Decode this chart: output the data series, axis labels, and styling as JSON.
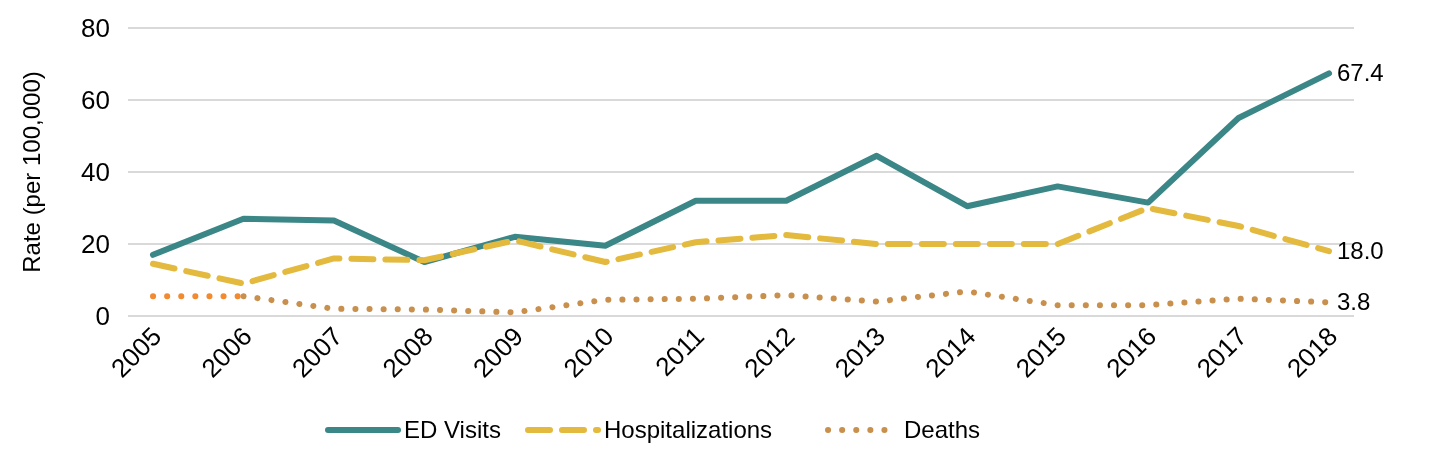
{
  "chart_data": {
    "type": "line",
    "ylabel": "Rate (per 100,000)",
    "categories": [
      "2005",
      "2006",
      "2007",
      "2008",
      "2009",
      "2010",
      "2011",
      "2012",
      "2013",
      "2014",
      "2015",
      "2016",
      "2017",
      "2018"
    ],
    "series": [
      {
        "name": "ED Visits",
        "color": "#3b8686",
        "line_style": "solid",
        "values": [
          17,
          27,
          26.5,
          15,
          22,
          19.5,
          32,
          32,
          44.5,
          30.5,
          36,
          31.5,
          55,
          67.4
        ],
        "value_labels": [
          null,
          null,
          null,
          null,
          null,
          null,
          null,
          null,
          null,
          null,
          null,
          null,
          null,
          "67.4"
        ]
      },
      {
        "name": "Hospitalizations",
        "color": "#e3b93e",
        "line_style": "dashed",
        "values": [
          14.5,
          9,
          16,
          15.5,
          21,
          15,
          20.5,
          22.5,
          20,
          20,
          20,
          30,
          25,
          18.0
        ],
        "value_labels": [
          null,
          null,
          null,
          null,
          null,
          null,
          null,
          null,
          null,
          null,
          null,
          null,
          null,
          "18.0"
        ]
      },
      {
        "name": "Deaths",
        "color": "#c8904c",
        "line_style": "dotted",
        "values": [
          null,
          5.5,
          2,
          1.8,
          1,
          4.5,
          4.8,
          5.8,
          4,
          6.8,
          3,
          3,
          4.8,
          3.8
        ],
        "value_labels": [
          null,
          null,
          null,
          null,
          null,
          null,
          null,
          null,
          null,
          null,
          null,
          null,
          null,
          "3.8"
        ]
      },
      {
        "color": "#f28a30",
        "line_style": "dotted",
        "values": [
          5.5,
          5.5,
          null,
          null,
          null,
          null,
          null,
          null,
          null,
          null,
          null,
          null,
          null,
          null
        ]
      }
    ],
    "ylim": [
      0,
      80
    ],
    "yticks": [
      0,
      20,
      40,
      60,
      80
    ],
    "grid": "y",
    "legend": "bottom",
    "marker": "none"
  }
}
